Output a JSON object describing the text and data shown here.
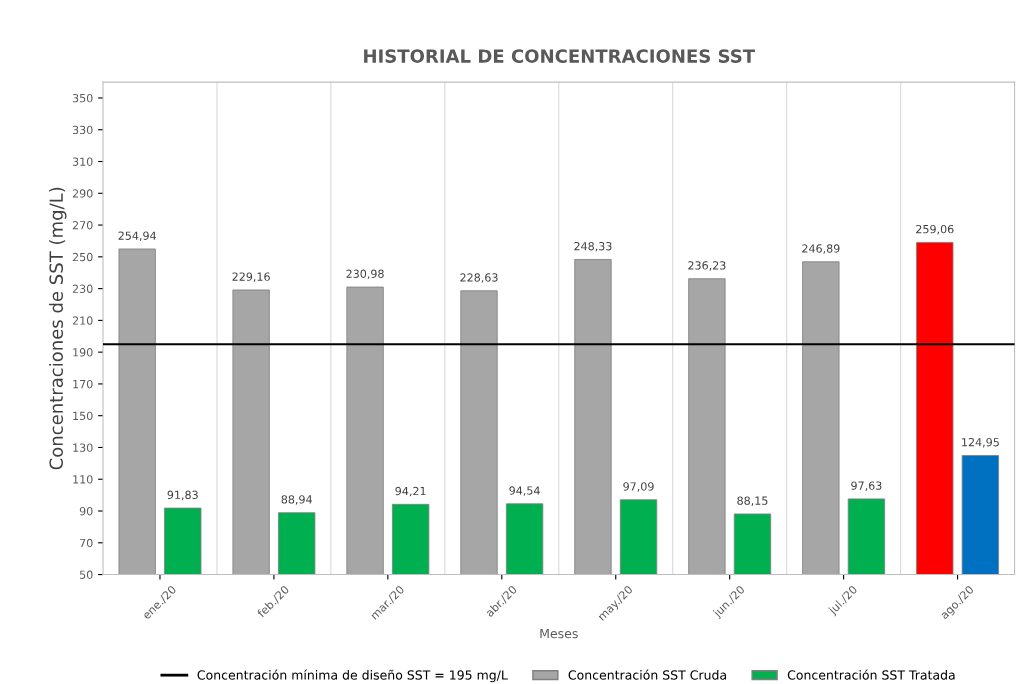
{
  "chart_data": {
    "type": "bar",
    "title": "HISTORIAL DE CONCENTRACIONES SST",
    "xlabel": "Meses",
    "ylabel": "Concentraciones de SST (mg/L)",
    "categories": [
      "ene./20",
      "feb./20",
      "mar./20",
      "abr./20",
      "may./20",
      "jun./20",
      "jul./20",
      "ago./20"
    ],
    "series": [
      {
        "name": "Concentración SST Cruda",
        "color": "#a6a6a6",
        "colors": [
          "#a6a6a6",
          "#a6a6a6",
          "#a6a6a6",
          "#a6a6a6",
          "#a6a6a6",
          "#a6a6a6",
          "#a6a6a6",
          "#ff0000"
        ],
        "values": [
          254.94,
          229.16,
          230.98,
          228.63,
          248.33,
          236.23,
          246.89,
          259.06
        ],
        "value_labels": [
          "254,94",
          "229,16",
          "230,98",
          "228,63",
          "248,33",
          "236,23",
          "246,89",
          "259,06"
        ]
      },
      {
        "name": "Concentración SST Tratada",
        "color": "#00b050",
        "colors": [
          "#00b050",
          "#00b050",
          "#00b050",
          "#00b050",
          "#00b050",
          "#00b050",
          "#00b050",
          "#0070c0"
        ],
        "values": [
          91.83,
          88.94,
          94.21,
          94.54,
          97.09,
          88.15,
          97.63,
          124.95
        ],
        "value_labels": [
          "91,83",
          "88,94",
          "94,21",
          "94,54",
          "97,09",
          "88,15",
          "97,63",
          "124,95"
        ]
      }
    ],
    "ylim": [
      50,
      360
    ],
    "yticks": [
      50,
      70,
      90,
      110,
      130,
      150,
      170,
      190,
      210,
      230,
      250,
      270,
      290,
      310,
      330,
      350
    ],
    "ref_lines": [
      {
        "axis": "y",
        "value": 195,
        "label": "Concentración mínima de diseño SST = 195 mg/L",
        "color": "#000000"
      }
    ],
    "grid": "x",
    "legend": "bottom"
  }
}
